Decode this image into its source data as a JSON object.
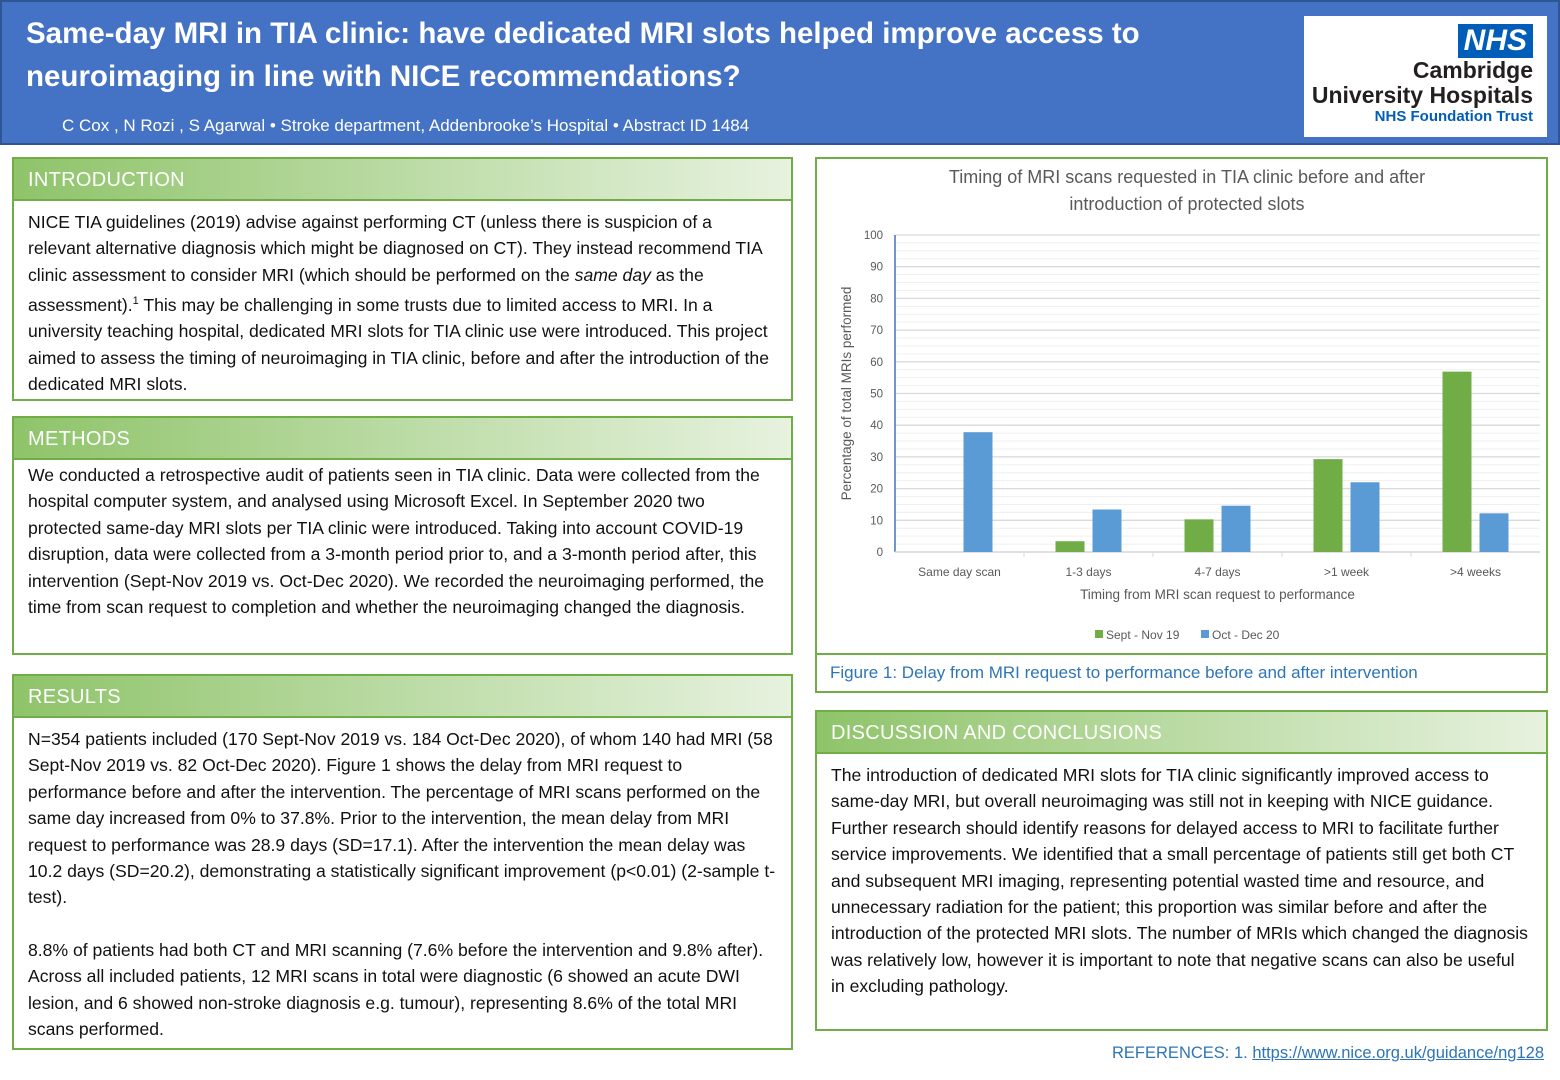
{
  "header": {
    "title": "Same-day MRI in TIA clinic: have dedicated MRI slots helped improve access to neuroimaging in line with NICE recommendations?",
    "authors": "C Cox , N Rozi , S Agarwal  •  Stroke department, Addenbrooke’s Hospital  •  Abstract ID 1484",
    "logo": {
      "nhs": "NHS",
      "line1": "Cambridge",
      "line2": "University Hospitals",
      "line3": "NHS Foundation Trust"
    }
  },
  "introduction": {
    "heading": "INTRODUCTION",
    "p1a": "NICE TIA guidelines (2019) advise against performing CT (unless there is suspicion of a relevant alternative diagnosis which might be diagnosed on CT). They instead recommend TIA clinic assessment to consider MRI (which should be performed on the ",
    "em": "same day",
    "p1b": " as the assessment).",
    "sup": "1",
    "p1c": " This may be challenging in some trusts due to limited access to MRI. In a university teaching hospital, dedicated MRI slots for TIA clinic use were introduced. This project aimed to assess the timing of neuroimaging in TIA clinic, before and after the introduction of the dedicated MRI slots."
  },
  "methods": {
    "heading": "METHODS",
    "text": "We conducted a retrospective audit of patients seen in TIA clinic. Data were collected from the hospital computer system, and analysed using Microsoft Excel. In September 2020 two protected same-day MRI slots per TIA clinic were introduced. Taking into account COVID-19 disruption, data were collected from a 3-month period prior to, and a 3-month period after, this intervention (Sept-Nov 2019 vs. Oct-Dec 2020). We recorded the neuroimaging performed, the time from scan request to completion and whether the neuroimaging changed the diagnosis."
  },
  "results": {
    "heading": "RESULTS",
    "p1": "N=354 patients included (170 Sept-Nov 2019 vs. 184 Oct-Dec 2020), of whom 140 had MRI (58 Sept-Nov 2019 vs. 82 Oct-Dec 2020). Figure 1 shows the delay from MRI request to performance before and after the intervention. The percentage of MRI scans performed on the same day increased from 0% to 37.8%. Prior to the intervention, the mean delay from MRI request to performance was 28.9 days (SD=17.1). After the intervention the mean delay was 10.2 days (SD=20.2), demonstrating a statistically significant improvement (p<0.01) (2-sample t-test).",
    "p2": "8.8% of patients had both CT and MRI scanning (7.6% before the intervention and 9.8% after). Across all included patients, 12 MRI scans in total were diagnostic (6 showed an acute DWI lesion, and 6 showed non-stroke diagnosis e.g. tumour), representing 8.6% of the total MRI scans performed."
  },
  "figure": {
    "caption": "Figure 1: Delay from MRI request to performance before and after intervention"
  },
  "chart_data": {
    "type": "bar",
    "title": "Timing of MRI scans requested in TIA clinic before and after introduction of protected slots",
    "title_line1": "Timing of MRI scans requested in TIA clinic before and after",
    "title_line2": "introduction of protected slots",
    "xlabel": "Timing from MRI scan request to performance",
    "ylabel": "Percentage of total MRIs performed",
    "ylim": [
      0,
      100
    ],
    "yticks": [
      0,
      10,
      20,
      30,
      40,
      50,
      60,
      70,
      80,
      90,
      100
    ],
    "categories": [
      "Same day scan",
      "1-3 days",
      "4-7 days",
      ">1 week",
      ">4 weeks"
    ],
    "series": [
      {
        "name": "Sept - Nov 19",
        "color": "#70AD47",
        "values": [
          0,
          3.4,
          10.3,
          29.3,
          56.9
        ]
      },
      {
        "name": "Oct - Dec 20",
        "color": "#5B9BD5",
        "values": [
          37.8,
          13.4,
          14.6,
          22.0,
          12.2
        ]
      }
    ],
    "legend": "bottom",
    "grid": true
  },
  "discussion": {
    "heading": "DISCUSSION AND CONCLUSIONS",
    "text": "The introduction of dedicated MRI slots for TIA clinic significantly improved access to same-day MRI, but overall neuroimaging was still not in keeping with NICE guidance. Further research should identify reasons for delayed access to MRI to facilitate further service improvements. We identified that a small percentage of patients still get both CT and subsequent MRI imaging, representing potential wasted time and resource, and unnecessary radiation for the patient; this proportion was similar before and after the introduction of the protected MRI slots. The number of MRIs which changed the diagnosis was relatively low, however it is important to note that negative scans can also be useful in excluding pathology."
  },
  "references": {
    "label": "REFERENCES:  1. ",
    "link": "https://www.nice.org.uk/guidance/ng128"
  }
}
